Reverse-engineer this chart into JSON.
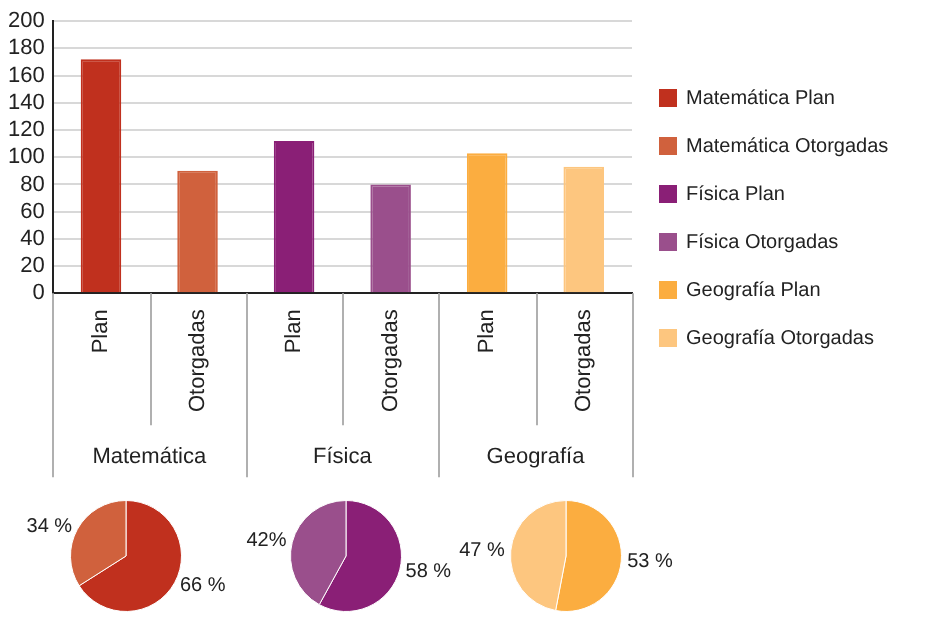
{
  "chart_data": [
    {
      "type": "bar",
      "categories": [
        "Plan",
        "Otorgadas",
        "Plan",
        "Otorgadas",
        "Plan",
        "Otorgadas"
      ],
      "series": [
        {
          "name": "Matemática Plan",
          "color": "#c0301e",
          "values": [
            172,
            null,
            null,
            null,
            null,
            null
          ]
        },
        {
          "name": "Matemática Otorgadas",
          "color": "#d0613d",
          "values": [
            null,
            90,
            null,
            null,
            null,
            null
          ]
        },
        {
          "name": "Física Plan",
          "color": "#8a1f76",
          "values": [
            null,
            null,
            112,
            null,
            null,
            null
          ]
        },
        {
          "name": "Física Otorgadas",
          "color": "#9a4f8c",
          "values": [
            null,
            null,
            null,
            80,
            null,
            null
          ]
        },
        {
          "name": "Geografía Plan",
          "color": "#fbad40",
          "values": [
            null,
            null,
            null,
            null,
            103,
            null
          ]
        },
        {
          "name": "Geografía Otorgadas",
          "color": "#fdc67f",
          "values": [
            null,
            null,
            null,
            null,
            null,
            93
          ]
        }
      ],
      "ylim": [
        0,
        200
      ],
      "yticks": [
        0,
        20,
        40,
        60,
        80,
        100,
        120,
        140,
        160,
        180,
        200
      ],
      "grid": "y",
      "legend": "right",
      "annotations": [
        "Matemática",
        "Física",
        "Geografía"
      ]
    },
    {
      "type": "pie",
      "categories": [
        null,
        null
      ],
      "values": [
        66,
        34
      ],
      "colors": [
        "#c0301e",
        "#d0613d"
      ],
      "value_labels": [
        "66 %",
        "34 %"
      ]
    },
    {
      "type": "pie",
      "categories": [
        null,
        null
      ],
      "values": [
        58,
        42
      ],
      "colors": [
        "#8a1f76",
        "#9a4f8c"
      ],
      "value_labels": [
        "58 %",
        "42%"
      ]
    },
    {
      "type": "pie",
      "categories": [
        null,
        null
      ],
      "values": [
        53,
        47
      ],
      "colors": [
        "#fbad40",
        "#fdc67f"
      ],
      "value_labels": [
        "53 %",
        "47 %"
      ]
    }
  ]
}
